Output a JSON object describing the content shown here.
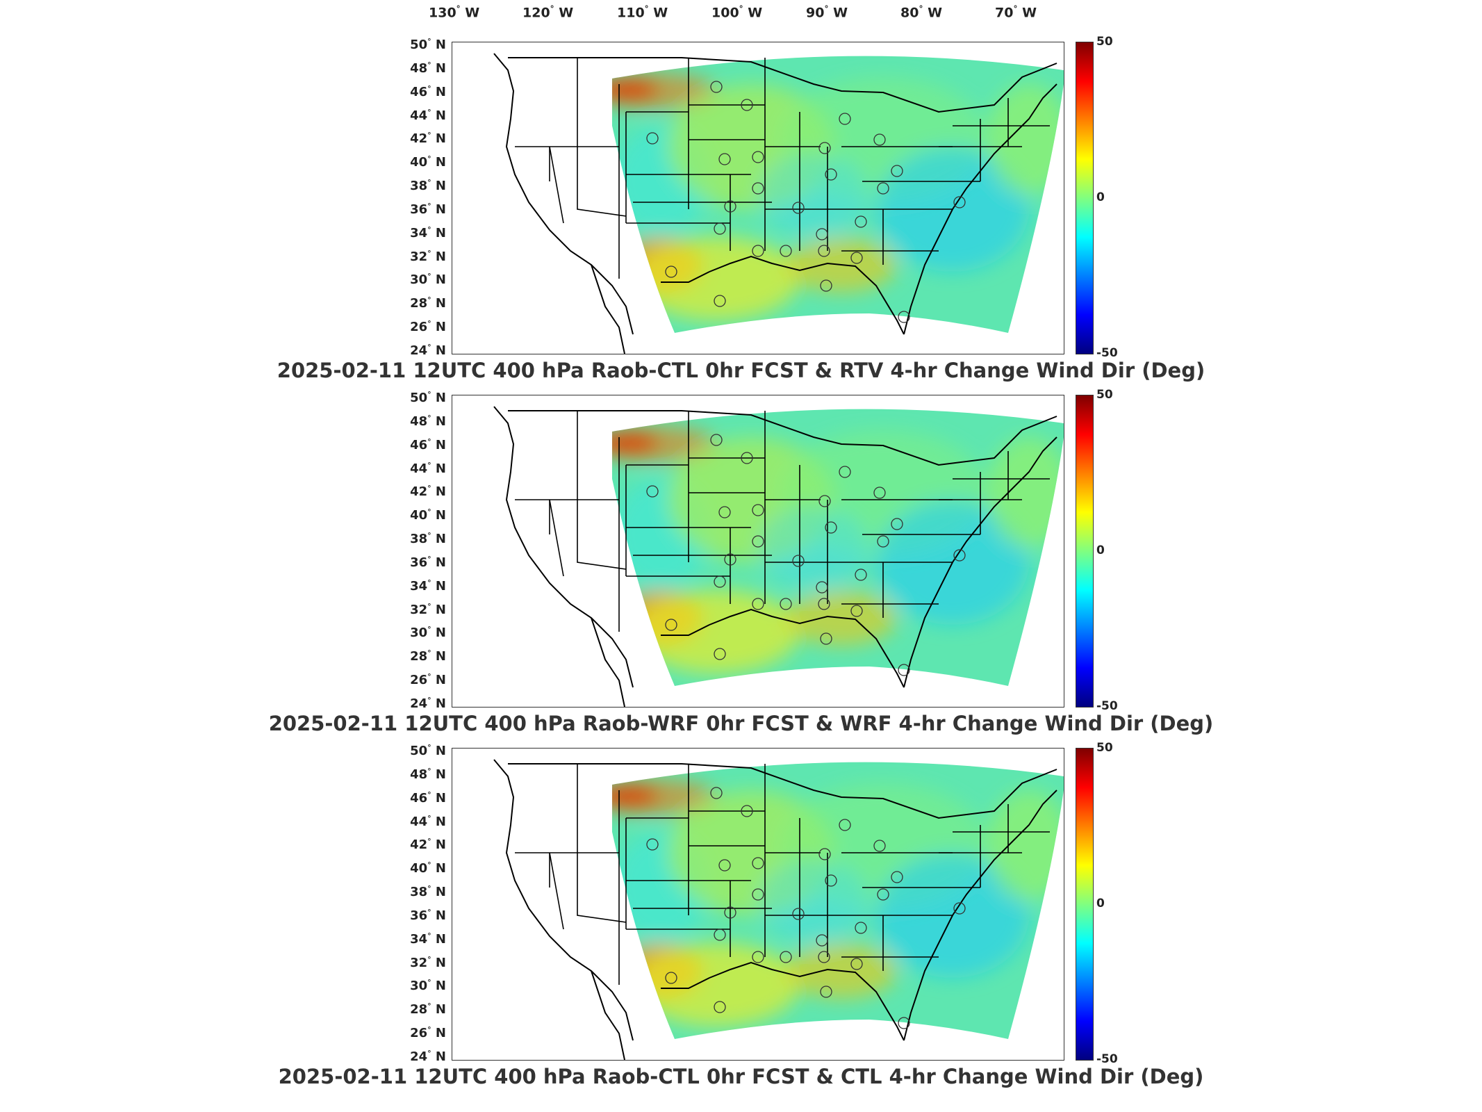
{
  "longitude_labels": [
    {
      "deg": "130",
      "hemi": "W"
    },
    {
      "deg": "120",
      "hemi": "W"
    },
    {
      "deg": "110",
      "hemi": "W"
    },
    {
      "deg": "100",
      "hemi": "W"
    },
    {
      "deg": "90",
      "hemi": "W"
    },
    {
      "deg": "80",
      "hemi": "W"
    },
    {
      "deg": "70",
      "hemi": "W"
    }
  ],
  "latitude_labels": [
    {
      "deg": "50",
      "hemi": "N"
    },
    {
      "deg": "48",
      "hemi": "N"
    },
    {
      "deg": "46",
      "hemi": "N"
    },
    {
      "deg": "44",
      "hemi": "N"
    },
    {
      "deg": "42",
      "hemi": "N"
    },
    {
      "deg": "40",
      "hemi": "N"
    },
    {
      "deg": "38",
      "hemi": "N"
    },
    {
      "deg": "36",
      "hemi": "N"
    },
    {
      "deg": "34",
      "hemi": "N"
    },
    {
      "deg": "32",
      "hemi": "N"
    },
    {
      "deg": "30",
      "hemi": "N"
    },
    {
      "deg": "28",
      "hemi": "N"
    },
    {
      "deg": "26",
      "hemi": "N"
    },
    {
      "deg": "24",
      "hemi": "N"
    }
  ],
  "colorbar": {
    "max_label": "50",
    "mid_label": "0",
    "min_label": "-50",
    "range": [
      -50,
      50
    ],
    "colors": [
      "#7f0000",
      "#ff0000",
      "#ff8000",
      "#ffff00",
      "#80ff80",
      "#00ffff",
      "#0080ff",
      "#0000ff",
      "#00007f"
    ]
  },
  "panels": [
    {
      "title": "2025-02-11 12UTC 400 hPa Raob-CTL 0hr FCST & RTV 4-hr Change Wind Dir (Deg)"
    },
    {
      "title": "2025-02-11 12UTC 400 hPa Raob-WRF 0hr FCST & WRF 4-hr Change Wind Dir (Deg)"
    },
    {
      "title": "2025-02-11 12UTC 400 hPa Raob-CTL 0hr FCST & CTL 4-hr Change Wind Dir (Deg)"
    }
  ],
  "raob_station_count": 24
}
